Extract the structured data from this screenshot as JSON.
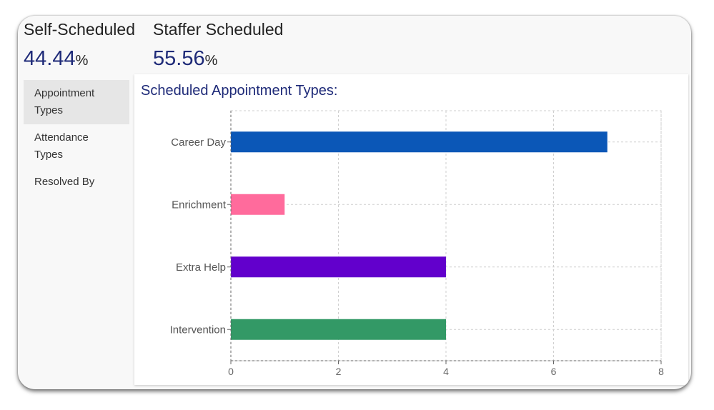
{
  "stats": [
    {
      "label": "Self-Scheduled",
      "value": "44.44",
      "unit": "%"
    },
    {
      "label": "Staffer Scheduled",
      "value": "55.56",
      "unit": "%"
    }
  ],
  "sidebar": {
    "items": [
      {
        "label": "Appointment Types",
        "active": true
      },
      {
        "label": "Attendance Types",
        "active": false
      },
      {
        "label": "Resolved By",
        "active": false
      }
    ]
  },
  "panel": {
    "title": "Scheduled Appointment Types:"
  },
  "chart_data": {
    "type": "bar",
    "orientation": "horizontal",
    "title": "Scheduled Appointment Types:",
    "categories": [
      "Career Day",
      "Enrichment",
      "Extra Help",
      "Intervention"
    ],
    "values": [
      7,
      1,
      4,
      4
    ],
    "colors": [
      "#0b57b7",
      "#ff6b9c",
      "#6200cc",
      "#339966"
    ],
    "xlim": [
      0,
      8
    ],
    "xticks": [
      0,
      2,
      4,
      6,
      8
    ],
    "grid": true,
    "legend": "none"
  }
}
